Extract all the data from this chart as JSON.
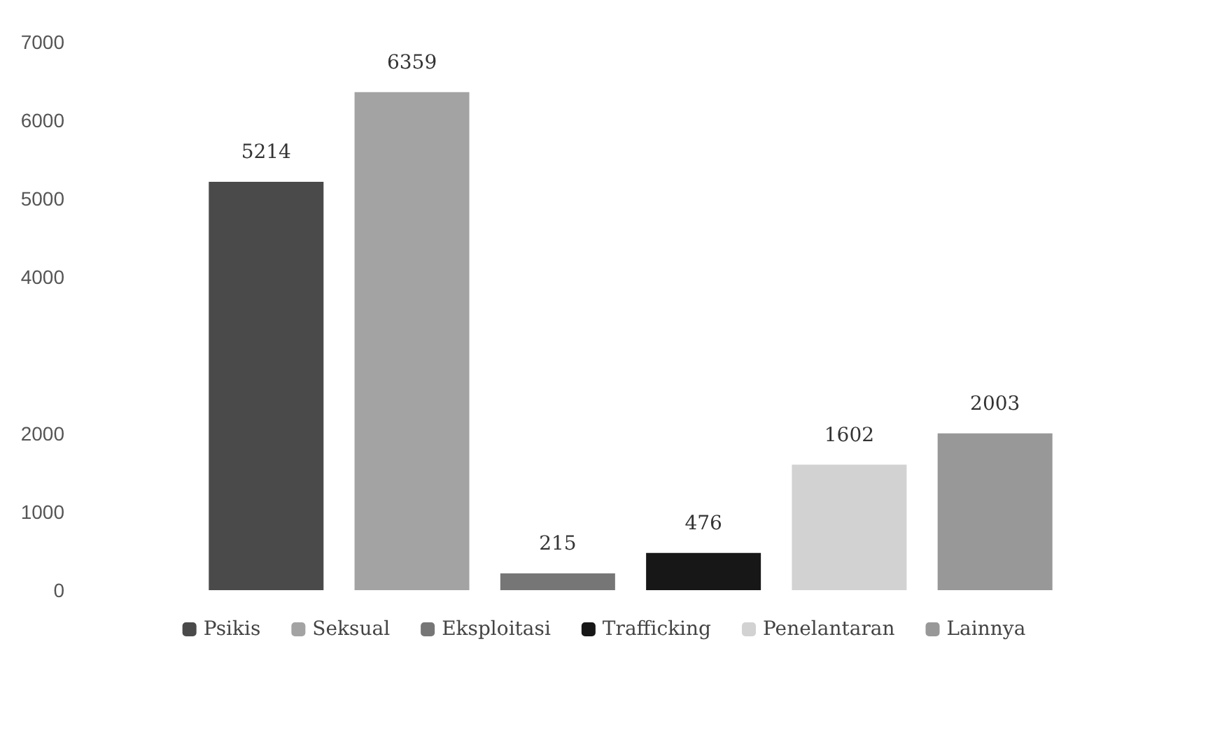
{
  "chart_data": {
    "type": "bar",
    "categories": [
      null
    ],
    "series": [
      {
        "name": "Psikis",
        "color": "#4a4a4a",
        "values": [
          5214
        ]
      },
      {
        "name": "Seksual",
        "color": "#a3a3a3",
        "values": [
          6359
        ]
      },
      {
        "name": "Eksploitasi",
        "color": "#767676",
        "values": [
          215
        ]
      },
      {
        "name": "Trafficking",
        "color": "#171717",
        "values": [
          476
        ]
      },
      {
        "name": "Penelantaran",
        "color": "#d2d2d2",
        "values": [
          1602
        ]
      },
      {
        "name": "Lainnya",
        "color": "#989898",
        "values": [
          2003
        ]
      }
    ],
    "ylim": [
      0,
      7000
    ],
    "yticks": [
      0,
      1000,
      2000,
      4000,
      5000,
      6000,
      7000
    ],
    "data_labels": true,
    "grid": false,
    "legend": "bottom"
  }
}
